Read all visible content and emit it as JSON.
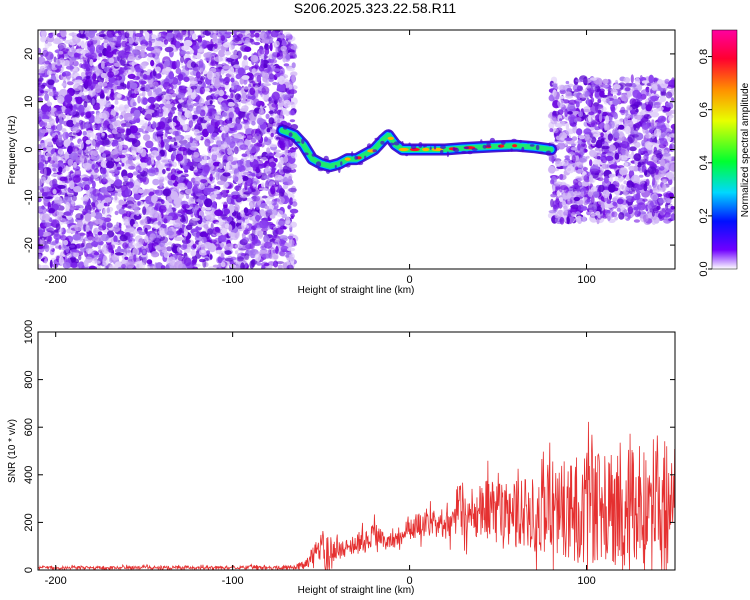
{
  "title": "S206.2025.323.22.58.R11",
  "colors": {
    "signal_line": "#e53030",
    "frame": "#000000",
    "noise_purple": "#6a00e0",
    "noise_light": "#c9a6f2"
  },
  "chart_data": [
    {
      "type": "heatmap",
      "name": "spectrogram",
      "xlabel": "Height of straight line (km)",
      "ylabel": "Frequency (Hz)",
      "xlim": [
        -210,
        150
      ],
      "ylim": [
        -25,
        25
      ],
      "xticks": [
        -200,
        -100,
        0,
        100
      ],
      "xtick_labels": [
        "-200",
        "-100",
        "0",
        "100"
      ],
      "yticks": [
        -20,
        -10,
        0,
        10,
        20
      ],
      "ytick_labels": [
        "-20",
        "-10",
        "0",
        "10",
        "20"
      ],
      "colorbar": {
        "label": "Normalized spectral amplitude",
        "range": [
          0.0,
          0.9
        ],
        "ticks": [
          0.0,
          0.2,
          0.4,
          0.6,
          0.8
        ],
        "tick_labels": [
          "0.0",
          "0.2",
          "0.4",
          "0.6",
          "0.8"
        ]
      },
      "ridge": {
        "x": [
          -72,
          -65,
          -60,
          -55,
          -50,
          -45,
          -40,
          -35,
          -30,
          -25,
          -20,
          -15,
          -12,
          -8,
          -4,
          0,
          10,
          20,
          30,
          40,
          50,
          60,
          70,
          80
        ],
        "freq": [
          4,
          3,
          1,
          -2,
          -3,
          -3.5,
          -3,
          -2,
          -2,
          -1,
          0,
          2,
          3,
          1,
          0,
          0,
          0,
          0,
          0.3,
          0.5,
          0.7,
          0.8,
          0.5,
          0
        ]
      },
      "noise_regions": [
        {
          "name": "left-noise",
          "x": [
            -210,
            -65
          ],
          "freq": [
            -25,
            25
          ]
        },
        {
          "name": "right-noise",
          "x": [
            80,
            150
          ],
          "freq": [
            -15,
            15
          ]
        }
      ]
    },
    {
      "type": "line",
      "name": "snr",
      "xlabel": "Height of straight line (km)",
      "ylabel": "SNR (10 * v/v)",
      "xlim": [
        -210,
        150
      ],
      "ylim": [
        0,
        1000
      ],
      "xticks": [
        -200,
        -100,
        0,
        100
      ],
      "xtick_labels": [
        "-200",
        "-100",
        "0",
        "100"
      ],
      "yticks": [
        0,
        200,
        400,
        600,
        800,
        1000
      ],
      "ytick_labels": [
        "0",
        "200",
        "400",
        "600",
        "800",
        "1000"
      ],
      "envelope": {
        "x": [
          -210,
          -70,
          -60,
          -50,
          -48,
          -40,
          -30,
          -20,
          -10,
          0,
          10,
          20,
          30,
          40,
          50,
          60,
          70,
          80,
          90,
          100,
          110,
          120,
          130,
          140,
          145,
          150
        ],
        "mean": [
          10,
          10,
          20,
          100,
          70,
          80,
          110,
          140,
          120,
          170,
          200,
          190,
          230,
          260,
          240,
          230,
          250,
          260,
          250,
          260,
          270,
          250,
          260,
          280,
          300,
          280
        ],
        "spread": [
          8,
          8,
          20,
          60,
          120,
          40,
          50,
          60,
          40,
          60,
          60,
          70,
          100,
          140,
          150,
          160,
          180,
          220,
          240,
          260,
          270,
          280,
          300,
          320,
          400,
          250
        ]
      }
    }
  ]
}
